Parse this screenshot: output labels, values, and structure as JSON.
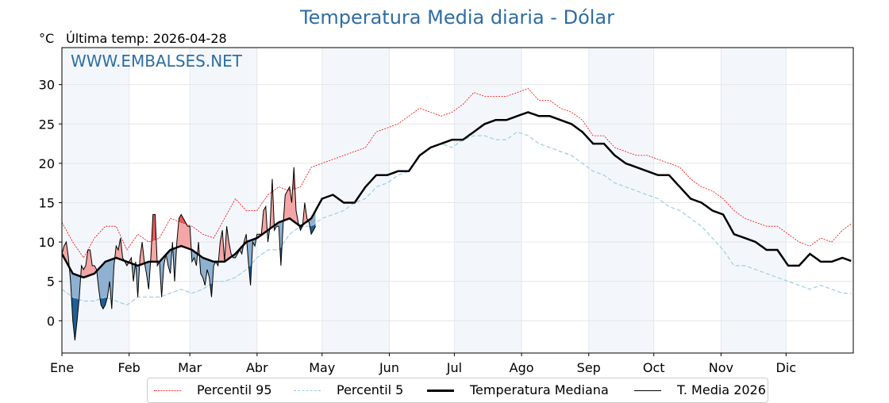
{
  "title": "Temperatura Media diaria - Dólar",
  "unit": "°C",
  "last_temp_label": "Última temp: 2026-04-28",
  "watermark": "WWW.EMBALSES.NET",
  "colors": {
    "title": "#2e6da4",
    "p95": "#ff0000",
    "p5": "#9dcfe0",
    "median": "#000000",
    "above": "#f4a6a6",
    "above_p95": "#e8585a",
    "below": "#8fb0d0",
    "below_p5": "#1f5f96",
    "shade": "#f3f7fb"
  },
  "legend": [
    {
      "label": "Percentil 95"
    },
    {
      "label": "Percentil 5"
    },
    {
      "label": "Temperatura Mediana"
    },
    {
      "label": "T. Media 2026"
    }
  ],
  "chart_data": {
    "type": "line",
    "title": "Temperatura Media diaria - Dólar",
    "ylabel": "°C",
    "ylim": [
      -4.1,
      34.7
    ],
    "xlim": [
      0,
      365
    ],
    "yticks": [
      0,
      5,
      10,
      15,
      20,
      25,
      30
    ],
    "months": [
      {
        "label": "Ene",
        "day": 0
      },
      {
        "label": "Feb",
        "day": 31
      },
      {
        "label": "Mar",
        "day": 59
      },
      {
        "label": "Abr",
        "day": 90
      },
      {
        "label": "May",
        "day": 120
      },
      {
        "label": "Jun",
        "day": 151
      },
      {
        "label": "Jul",
        "day": 181
      },
      {
        "label": "Ago",
        "day": 212
      },
      {
        "label": "Sep",
        "day": 243
      },
      {
        "label": "Oct",
        "day": 273
      },
      {
        "label": "Nov",
        "day": 304
      },
      {
        "label": "Dic",
        "day": 334
      }
    ],
    "grid": true,
    "legend_placement": "bottom-center",
    "step_days": 5,
    "median": [
      8.5,
      6,
      5.5,
      6,
      7.5,
      8,
      7.5,
      7,
      7.5,
      7.5,
      9,
      9.5,
      9,
      8,
      7.5,
      7.5,
      8.5,
      10,
      10.5,
      11.5,
      12.5,
      13,
      12,
      13,
      15.5,
      16,
      15,
      15,
      17,
      18.5,
      18.5,
      19,
      19,
      21,
      22,
      22.5,
      23,
      23,
      24,
      25,
      25.5,
      25.5,
      26,
      26.5,
      26,
      26,
      25.5,
      25,
      24,
      22.5,
      22.5,
      21,
      20,
      19.5,
      19,
      18.5,
      18.5,
      17,
      15.5,
      15,
      14,
      13.5,
      11,
      10.5,
      10,
      9,
      9,
      7,
      7,
      8.5,
      7.5,
      7.5,
      8,
      7.5
    ],
    "p95": [
      12.5,
      10,
      8,
      10.5,
      12,
      12,
      9,
      11,
      10,
      10.5,
      13,
      12.5,
      12,
      11,
      10.5,
      13,
      15.5,
      14,
      14,
      16,
      17,
      16.5,
      17,
      19.5,
      20,
      20.5,
      21,
      21.5,
      22,
      24,
      24.5,
      25,
      26,
      27,
      26.5,
      26,
      26.5,
      27.5,
      29,
      28.5,
      28.5,
      28.5,
      29,
      29.5,
      28,
      28,
      27,
      26.5,
      25.5,
      23.5,
      23.5,
      22,
      21.5,
      21,
      21,
      20.5,
      20,
      19.5,
      18,
      17,
      16.5,
      15.5,
      14,
      13,
      12.5,
      12,
      12,
      11,
      10,
      9.5,
      10.5,
      10,
      11.5,
      12.5
    ],
    "p5": [
      4,
      3,
      2.5,
      2.5,
      3,
      2.5,
      2,
      3,
      3,
      3,
      3.5,
      4,
      3.5,
      4,
      5,
      5,
      5.5,
      6.5,
      8,
      9,
      9,
      11,
      12,
      12,
      13,
      13.5,
      14,
      15,
      15.5,
      17,
      17.5,
      18.5,
      19,
      21,
      22,
      22.5,
      22,
      23,
      23.5,
      23.5,
      23,
      23,
      24,
      23.5,
      22.5,
      22,
      21.5,
      21,
      20,
      19,
      18.5,
      17.5,
      17,
      16.5,
      16,
      15.5,
      14.5,
      14,
      13,
      12,
      10.5,
      9,
      7,
      7,
      6.5,
      6,
      5.5,
      5,
      4.5,
      4,
      4.5,
      4,
      3.5,
      3.5
    ],
    "series_2026": [
      8.5,
      9.5,
      10,
      8,
      5,
      0,
      -2.5,
      0,
      3,
      7,
      6.5,
      7,
      9,
      9,
      7,
      7,
      6.5,
      4,
      2,
      1.5,
      2,
      3,
      5,
      1.5,
      7,
      9.5,
      9,
      10.5,
      8,
      7.5,
      7,
      7.5,
      8,
      5,
      7.5,
      3,
      8,
      10,
      7.5,
      6,
      4,
      8,
      13.5,
      13.5,
      7,
      7.5,
      3,
      7,
      8.5,
      7,
      6,
      10,
      5,
      10,
      13,
      13.5,
      13,
      12.5,
      12,
      12,
      7.5,
      8,
      7,
      10,
      6,
      5.5,
      4.5,
      6.5,
      5.5,
      3,
      7,
      7.5,
      7,
      10,
      11.5,
      7.5,
      12,
      10,
      8.5,
      8,
      8,
      8.5,
      9,
      8.5,
      10,
      11,
      7.5,
      4.5,
      10,
      9.5,
      11,
      11,
      11,
      14,
      14.5,
      10,
      12,
      18,
      11.5,
      12,
      12,
      7,
      12,
      16,
      16.5,
      17,
      15,
      19.5,
      14,
      12.5,
      11.5,
      12,
      15,
      13,
      12.5,
      11,
      11.5,
      12
    ]
  }
}
